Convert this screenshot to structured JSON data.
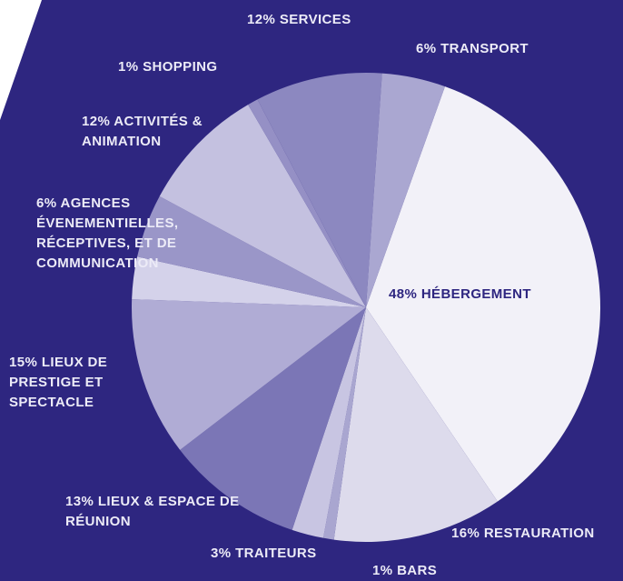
{
  "chart_data": {
    "type": "pie",
    "categories": [
      "HÉBERGEMENT",
      "RESTAURATION",
      "BARS",
      "TRAITEURS",
      "LIEUX & ESPACE DE RÉUNION",
      "LIEUX DE PRESTIGE ET SPECTACLE",
      null,
      "AGENCES ÉVENEMENTIELLES, RÉCEPTIVES, ET DE COMMUNICATION",
      "ACTIVITÉS & ANIMATION",
      "SHOPPING",
      "SERVICES",
      "TRANSPORT"
    ],
    "values": [
      48,
      16,
      1,
      3,
      13,
      15,
      4,
      6,
      12,
      1,
      12,
      6
    ],
    "value_labels": [
      "48%",
      "16%",
      "1%",
      "3%",
      "13%",
      "15%",
      null,
      "6%",
      "12%",
      "1%",
      "12%",
      "6%"
    ],
    "colors": [
      "#f2f1f8",
      "#dddbec",
      "#a9a6d0",
      "#c8c5e2",
      "#7b76b6",
      "#b0acd5",
      "#d4d2ea",
      "#9a96c8",
      "#c4c1e0",
      "#9590c5",
      "#8c88c0",
      "#aaa7d1"
    ]
  }
}
